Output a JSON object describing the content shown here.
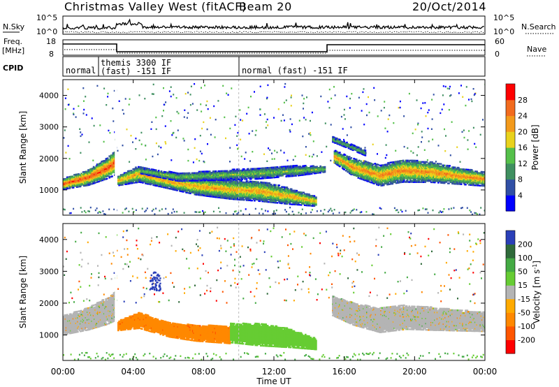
{
  "header": {
    "title": "Christmas Valley West (fitACF)",
    "beam": "Beam 20",
    "date": "20/Oct/2014"
  },
  "nsky_panel": {
    "label": "N.Sky",
    "left_ticks": [
      "10^5",
      "10^0"
    ],
    "right_label": "N.Search",
    "right_ticks": [
      "10^5",
      "10^0"
    ]
  },
  "freq_panel": {
    "label_line1": "Freq.",
    "label_line2": "[MHz]",
    "left_ticks": [
      "18",
      "8"
    ],
    "right_label": "Nave",
    "right_ticks": [
      "60",
      "0"
    ]
  },
  "cpid_panel": {
    "label": "CPID",
    "segments": [
      {
        "line1": "normal",
        "line2": ""
      },
      {
        "line1": "themis 3300 IF",
        "line2": "(fast) -151 IF"
      },
      {
        "line1": "normal (fast) -151 IF",
        "line2": ""
      }
    ]
  },
  "chart_data": [
    {
      "type": "heatmap",
      "panel": "power",
      "ylabel": "Slant Range [km]",
      "y_ticks": [
        "4000",
        "3000",
        "2000",
        "1000"
      ],
      "ylim": [
        200,
        4500
      ],
      "colorbar_label": "Power [dB]",
      "colorbar_ticks": [
        "28",
        "24",
        "20",
        "16",
        "12",
        "8",
        "4"
      ],
      "colorbar_range": [
        0,
        32
      ],
      "colors": [
        "#0000ff",
        "#304fa5",
        "#3f8f60",
        "#55c04a",
        "#e9d21c",
        "#f39a1b",
        "#f26b1e",
        "#ff0000"
      ],
      "gs_color": "#b4b4b4",
      "x_range": [
        0,
        24
      ],
      "bands": [
        {
          "x": [
            0.0,
            1.4,
            2.5,
            2.95
          ],
          "y": [
            1180,
            1380,
            1680,
            1850
          ],
          "hw": [
            170,
            240,
            330,
            380
          ],
          "core": 28
        },
        {
          "x": [
            3.1,
            4.3,
            6.0,
            7.5,
            9.5,
            11.2,
            12.8,
            14.4
          ],
          "y": [
            1280,
            1500,
            1250,
            1100,
            1000,
            950,
            800,
            620
          ],
          "hw": [
            150,
            260,
            220,
            260,
            300,
            320,
            260,
            150
          ],
          "core": 22
        },
        {
          "x": [
            4.4,
            6.5,
            8.8,
            11.0,
            13.3,
            14.9
          ],
          "y": [
            1600,
            1400,
            1450,
            1520,
            1600,
            1650
          ],
          "hw": [
            90,
            130,
            150,
            180,
            160,
            90
          ],
          "core": 15
        },
        {
          "x": [
            15.4,
            16.5,
            18.0,
            19.3,
            21.0,
            22.5,
            24.0
          ],
          "y": [
            2050,
            1700,
            1450,
            1600,
            1550,
            1430,
            1330
          ],
          "hw": [
            200,
            280,
            330,
            360,
            320,
            260,
            220
          ],
          "core": 24
        },
        {
          "x": [
            15.3,
            16.2,
            17.2
          ],
          "y": [
            2600,
            2400,
            2150
          ],
          "hw": [
            90,
            90,
            80
          ],
          "core": 13
        }
      ],
      "ground_band": {
        "x_ranges": [
          [
            2.95,
            15.2
          ]
        ],
        "y": [
          250,
          450
        ],
        "core": 5
      }
    },
    {
      "type": "heatmap",
      "panel": "velocity",
      "ylabel": "Slant Range [km]",
      "y_ticks": [
        "4000",
        "3000",
        "2000",
        "1000"
      ],
      "ylim": [
        200,
        4500
      ],
      "colorbar_label": "Velocity [m s^-1]",
      "colorbar_ticks": [
        "200",
        "100",
        "50",
        "15",
        "-15",
        "-50",
        "-100",
        "-200"
      ],
      "colorbar_range": [
        -250,
        250
      ],
      "colors": [
        "#ff0000",
        "#ff5500",
        "#ff8800",
        "#ffaa00",
        "#b4b4b4",
        "#66cc33",
        "#44aa44",
        "#2f6a3a",
        "#2a3fb8"
      ],
      "x_range": [
        0,
        24
      ],
      "bands": [
        {
          "x": [
            0.0,
            1.4,
            2.5,
            2.95
          ],
          "y": [
            1300,
            1500,
            1750,
            1900
          ],
          "hw": [
            300,
            350,
            420,
            450
          ],
          "core": 0
        },
        {
          "x": [
            3.1,
            4.3,
            6.0,
            7.5,
            9.5
          ],
          "y": [
            1280,
            1450,
            1150,
            1050,
            1000
          ],
          "hw": [
            150,
            250,
            220,
            250,
            280
          ],
          "core": -120
        },
        {
          "x": [
            9.5,
            11.2,
            12.8,
            14.4
          ],
          "y": [
            1050,
            1000,
            900,
            700
          ],
          "hw": [
            300,
            350,
            300,
            170
          ],
          "core": 60
        },
        {
          "x": [
            15.3,
            16.5,
            18.0,
            19.5,
            21.0,
            22.5,
            24.0
          ],
          "y": [
            1900,
            1650,
            1450,
            1550,
            1500,
            1450,
            1400
          ],
          "hw": [
            300,
            350,
            380,
            380,
            360,
            330,
            300
          ],
          "core": 0
        }
      ]
    }
  ],
  "x_axis": {
    "label": "Time UT",
    "ticks": [
      "00:00",
      "04:00",
      "08:00",
      "12:00",
      "16:00",
      "20:00",
      "00:00"
    ]
  }
}
